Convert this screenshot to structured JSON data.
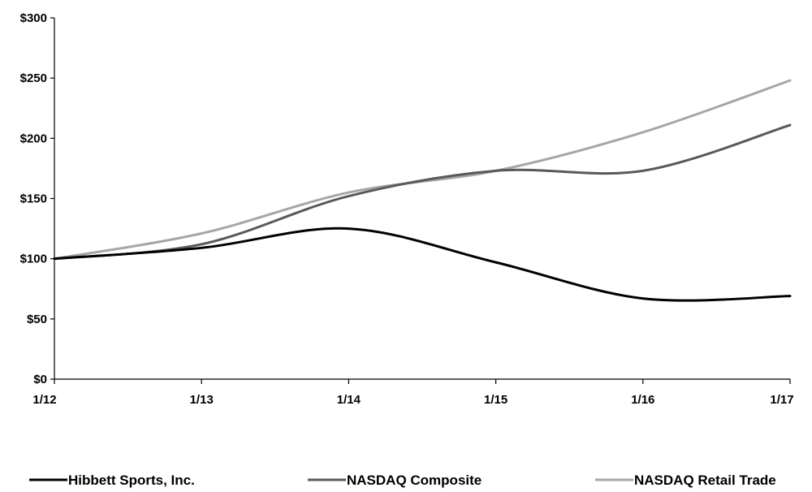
{
  "chart_data": {
    "type": "line",
    "categories": [
      "1/12",
      "1/13",
      "1/14",
      "1/15",
      "1/16",
      "1/17"
    ],
    "ylim": [
      0,
      300
    ],
    "yticks": [
      0,
      50,
      100,
      150,
      200,
      250,
      300
    ],
    "ytick_labels": [
      "$0",
      "$50",
      "$100",
      "$150",
      "$200",
      "$250",
      "$300"
    ],
    "grid": false,
    "legend_position": "bottom",
    "series": [
      {
        "name": "Hibbett Sports, Inc.",
        "color": "#000000",
        "values": [
          100,
          109,
          125,
          97,
          67,
          69
        ]
      },
      {
        "name": "NASDAQ Composite",
        "color": "#595959",
        "values": [
          100,
          112,
          152,
          173,
          173,
          211
        ]
      },
      {
        "name": "NASDAQ Retail Trade",
        "color": "#a6a6a6",
        "values": [
          100,
          121,
          155,
          173,
          205,
          248
        ]
      }
    ]
  }
}
